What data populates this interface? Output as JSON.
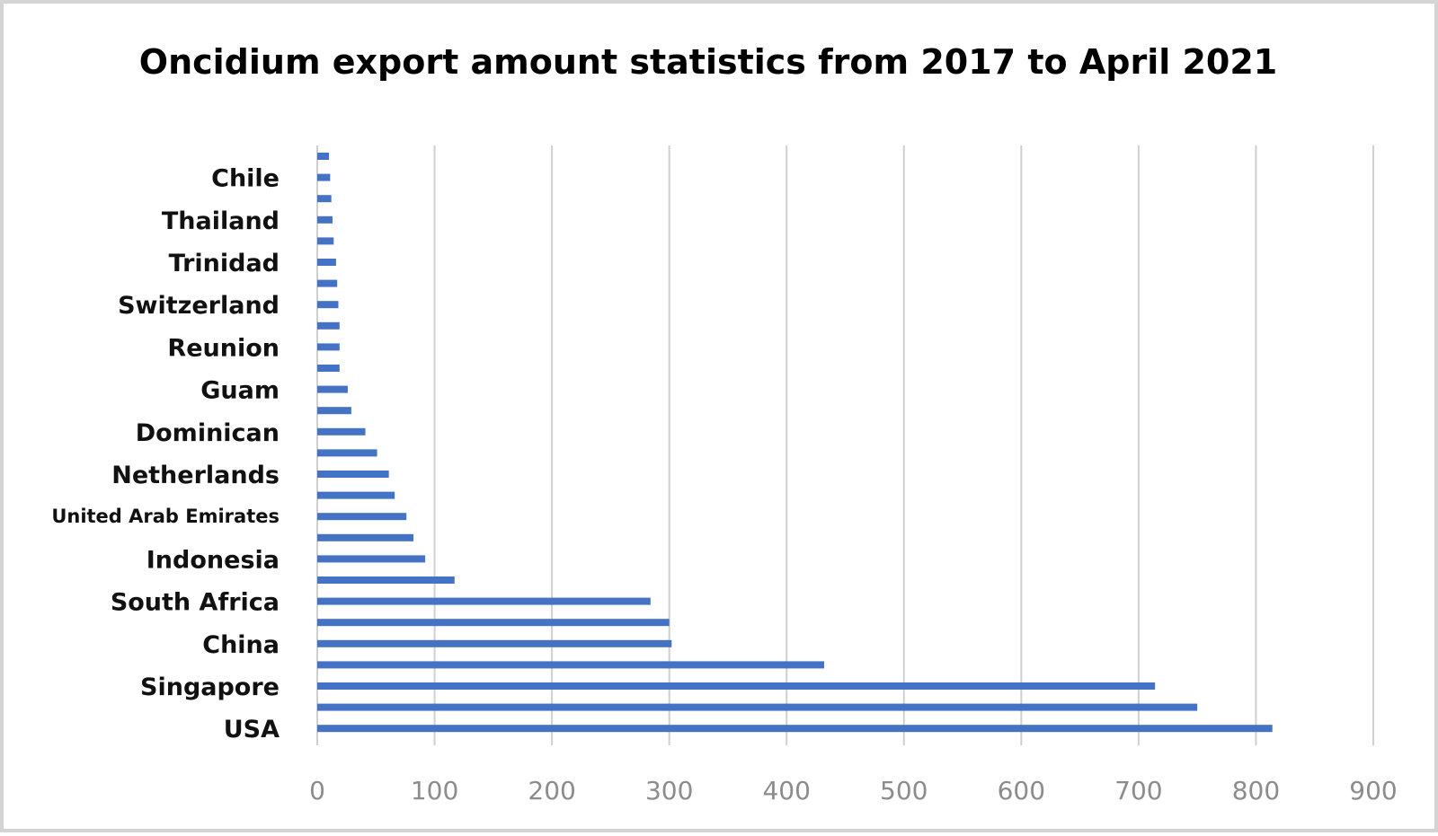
{
  "chart_data": {
    "type": "bar",
    "orientation": "horizontal",
    "title": "Oncidium export amount statistics from 2017 to April 2021",
    "xlim": [
      0,
      900
    ],
    "xticks": [
      0,
      100,
      200,
      300,
      400,
      500,
      600,
      700,
      800,
      900
    ],
    "grid": true,
    "legend": "none",
    "bar_color": "#4472c4",
    "categories": [
      "",
      "Chile",
      "",
      "Thailand",
      "",
      "Trinidad",
      "",
      "Switzerland",
      "",
      "Reunion",
      "",
      "Guam",
      "",
      "Dominican",
      "",
      "Netherlands",
      "",
      "United Arab Emirates",
      "",
      "Indonesia",
      "",
      "South Africa",
      "",
      "China",
      "",
      "Singapore",
      "",
      "USA"
    ],
    "values": [
      10,
      11,
      12,
      13,
      14,
      16,
      17,
      18,
      19,
      19,
      19,
      26,
      29,
      41,
      51,
      61,
      66,
      76,
      82,
      92,
      117,
      284,
      300,
      302,
      432,
      714,
      750,
      814
    ]
  }
}
